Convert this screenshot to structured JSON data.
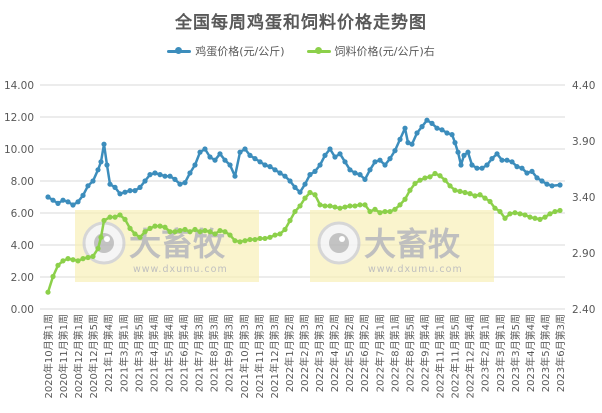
{
  "title": "全国每周鸡蛋和饲料价格走势图",
  "legend": [
    {
      "label": "鸡蛋价格(元/公斤)",
      "color": "#3C8DBC"
    },
    {
      "label": "饲料价格(元/公斤)右",
      "color": "#8CD04A"
    }
  ],
  "watermark": {
    "brand": "大畜牧",
    "url": "www.dxumu.com"
  },
  "chart_data": {
    "type": "line",
    "title": "全国每周鸡蛋和饲料价格走势图",
    "xlabel": "",
    "ylabel": "",
    "legend_position": "top",
    "grid": true,
    "left_axis": {
      "ylim": [
        0,
        14
      ],
      "ticks": [
        "0.00",
        "2.00",
        "4.00",
        "6.00",
        "8.00",
        "10.00",
        "12.00",
        "14.00"
      ]
    },
    "right_axis": {
      "ylim": [
        2.4,
        4.4
      ],
      "ticks": [
        "2.40",
        "2.90",
        "3.40",
        "3.90",
        "4.40"
      ]
    },
    "x_tick_labels": [
      "2020年10月第1周",
      "2020年11月第1周",
      "2020年12月第1周",
      "2020年12月第5周",
      "2021年1月第4周",
      "2021年3月第1周",
      "2021年3月第5周",
      "2021年4月第4周",
      "2021年5月第4周",
      "2021年6月第4周",
      "2021年7月第3周",
      "2021年8月第3周",
      "2021年9月第3周",
      "2021年10月第3周",
      "2021年11月第3周",
      "2021年12月第3周",
      "2022年1月第2周",
      "2022年2月第3周",
      "2022年3月第3周",
      "2022年4月第2周",
      "2022年5月第2周",
      "2022年6月第2周",
      "2022年7月第1周",
      "2022年8月第1周",
      "2022年8月第5周",
      "2022年9月第4周",
      "2022年11月第1周",
      "2022年11月第5周",
      "2022年12月第4周",
      "2023年2月第1周",
      "2023年3月第1周",
      "2023年3月第5周",
      "2023年4月第4周",
      "2023年5月第4周",
      "2023年6月第3周"
    ],
    "series": [
      {
        "name": "鸡蛋价格(元/公斤)",
        "axis": "left",
        "color": "#3C8DBC",
        "x_frac": [
          0,
          0.0098,
          0.0195,
          0.0293,
          0.0391,
          0.0488,
          0.0586,
          0.0684,
          0.0781,
          0.0879,
          0.0977,
          0.1035,
          0.1094,
          0.1152,
          0.1211,
          0.1309,
          0.1406,
          0.1504,
          0.1602,
          0.1699,
          0.1797,
          0.1895,
          0.1992,
          0.209,
          0.2188,
          0.2285,
          0.2383,
          0.248,
          0.2578,
          0.2676,
          0.2773,
          0.2871,
          0.2969,
          0.3066,
          0.3164,
          0.3262,
          0.3359,
          0.3457,
          0.3555,
          0.3652,
          0.375,
          0.3848,
          0.3945,
          0.4043,
          0.4141,
          0.4238,
          0.4336,
          0.4434,
          0.4531,
          0.4629,
          0.4727,
          0.4824,
          0.4922,
          0.502,
          0.5117,
          0.5215,
          0.5313,
          0.541,
          0.5508,
          0.5605,
          0.5703,
          0.5801,
          0.5898,
          0.5996,
          0.6094,
          0.6191,
          0.6289,
          0.6387,
          0.6484,
          0.6582,
          0.668,
          0.6777,
          0.6875,
          0.6973,
          0.7031,
          0.7109,
          0.7207,
          0.7305,
          0.7402,
          0.75,
          0.7598,
          0.7695,
          0.7793,
          0.7891,
          0.7949,
          0.8008,
          0.8066,
          0.8125,
          0.8203,
          0.8281,
          0.8379,
          0.8477,
          0.8574,
          0.8672,
          0.877,
          0.8867,
          0.8965,
          0.9063,
          0.916,
          0.9258,
          0.9355,
          0.9453,
          0.9551,
          0.9648,
          0.9746,
          0.9844,
          1.0
        ],
        "values": [
          7.0,
          6.8,
          6.6,
          6.8,
          6.7,
          6.5,
          6.7,
          7.1,
          7.7,
          8.0,
          8.7,
          9.2,
          10.3,
          9.0,
          7.8,
          7.6,
          7.2,
          7.3,
          7.4,
          7.4,
          7.6,
          8.0,
          8.4,
          8.5,
          8.4,
          8.3,
          8.3,
          8.1,
          7.8,
          7.9,
          8.5,
          9.0,
          9.8,
          10.0,
          9.5,
          9.3,
          9.7,
          9.3,
          9.0,
          8.3,
          9.8,
          10.0,
          9.6,
          9.4,
          9.2,
          9.0,
          8.9,
          8.7,
          8.5,
          8.3,
          8.0,
          7.6,
          7.3,
          7.8,
          8.4,
          8.6,
          9.0,
          9.6,
          10.0,
          9.5,
          9.7,
          9.2,
          8.7,
          8.5,
          8.4,
          8.1,
          8.7,
          9.2,
          9.3,
          9.0,
          9.4,
          9.9,
          10.6,
          11.3,
          10.4,
          10.3,
          11.0,
          11.4,
          11.8,
          11.6,
          11.3,
          11.2,
          11.0,
          10.9,
          10.4,
          9.8,
          9.0,
          9.6,
          9.8,
          9.0,
          8.8,
          8.8,
          9.0,
          9.4,
          9.7,
          9.3,
          9.3,
          9.2,
          8.9,
          8.8,
          8.5,
          8.6,
          8.2,
          8.0,
          7.8,
          7.7,
          7.75
        ]
      },
      {
        "name": "饲料价格(元/公斤)右",
        "axis": "right",
        "color": "#8CD04A",
        "x_frac": [
          0,
          0.0098,
          0.0195,
          0.0293,
          0.0391,
          0.0488,
          0.0586,
          0.0684,
          0.0781,
          0.0879,
          0.0977,
          0.1035,
          0.1094,
          0.1211,
          0.1309,
          0.1406,
          0.1504,
          0.1602,
          0.1699,
          0.1797,
          0.1895,
          0.1992,
          0.209,
          0.2188,
          0.2285,
          0.2383,
          0.248,
          0.2578,
          0.2676,
          0.2773,
          0.2871,
          0.2969,
          0.3066,
          0.3164,
          0.3262,
          0.3359,
          0.3457,
          0.3555,
          0.3652,
          0.375,
          0.3848,
          0.3945,
          0.4043,
          0.4141,
          0.4238,
          0.4336,
          0.4434,
          0.4531,
          0.4629,
          0.4727,
          0.4824,
          0.4922,
          0.502,
          0.5117,
          0.5215,
          0.5313,
          0.541,
          0.5508,
          0.5605,
          0.5703,
          0.5801,
          0.5898,
          0.5996,
          0.6094,
          0.6191,
          0.6289,
          0.6387,
          0.6484,
          0.6582,
          0.668,
          0.6777,
          0.6875,
          0.6973,
          0.707,
          0.7168,
          0.7266,
          0.7363,
          0.7461,
          0.7559,
          0.7656,
          0.7754,
          0.7852,
          0.7949,
          0.8047,
          0.8145,
          0.8242,
          0.834,
          0.8438,
          0.8535,
          0.8633,
          0.873,
          0.8828,
          0.8926,
          0.9023,
          0.9121,
          0.9219,
          0.9316,
          0.9414,
          0.9512,
          0.9609,
          0.9707,
          0.9805,
          0.9902,
          1.0
        ],
        "values": [
          2.55,
          2.69,
          2.79,
          2.83,
          2.85,
          2.84,
          2.83,
          2.85,
          2.86,
          2.87,
          2.94,
          3.04,
          3.19,
          3.22,
          3.22,
          3.24,
          3.2,
          3.12,
          3.07,
          3.04,
          3.09,
          3.12,
          3.14,
          3.14,
          3.13,
          3.09,
          3.09,
          3.1,
          3.11,
          3.09,
          3.11,
          3.09,
          3.1,
          3.09,
          3.07,
          3.1,
          3.09,
          3.06,
          3.01,
          3.0,
          3.01,
          3.02,
          3.02,
          3.03,
          3.03,
          3.04,
          3.06,
          3.07,
          3.11,
          3.19,
          3.27,
          3.32,
          3.39,
          3.44,
          3.42,
          3.33,
          3.32,
          3.32,
          3.31,
          3.3,
          3.31,
          3.32,
          3.32,
          3.33,
          3.33,
          3.27,
          3.29,
          3.26,
          3.27,
          3.27,
          3.29,
          3.33,
          3.38,
          3.46,
          3.52,
          3.55,
          3.57,
          3.58,
          3.61,
          3.59,
          3.55,
          3.5,
          3.46,
          3.45,
          3.44,
          3.43,
          3.41,
          3.42,
          3.39,
          3.36,
          3.3,
          3.27,
          3.21,
          3.25,
          3.26,
          3.25,
          3.24,
          3.22,
          3.21,
          3.2,
          3.22,
          3.25,
          3.27,
          3.28
        ]
      }
    ]
  }
}
